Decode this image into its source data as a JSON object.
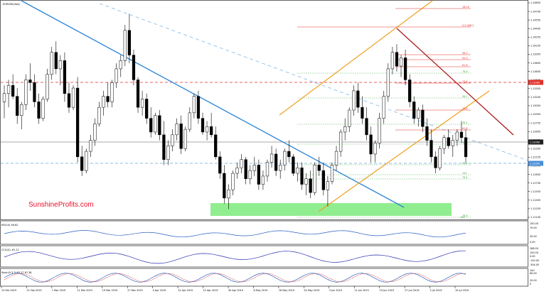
{
  "chart_data": {
    "type": "candlestick",
    "symbol_label": "EURUSD,Daily",
    "watermark": "SunshineProfits.com",
    "x_labels": [
      "13 Feb 2019",
      "21 Feb 2019",
      "1 Mar 2019",
      "11 Mar 2019",
      "19 Mar 2019",
      "27 Mar 2019",
      "4 Apr 2019",
      "12 Apr 2019",
      "22 Apr 2019",
      "30 Apr 2019",
      "8 May 2019",
      "16 May 2019",
      "24 May 2019",
      "3 Jun 2019",
      "11 Jun 2019",
      "19 Jun 2019",
      "27 Jun 2019",
      "5 Jul 2019",
      "15 Jul 2019"
    ],
    "price_axis": [
      "1.14850",
      "1.14700",
      "1.14550",
      "1.14405",
      "1.14255",
      "1.14105",
      "1.13955",
      "1.13805",
      "1.13655",
      "1.13505",
      "1.13355",
      "1.13205",
      "1.13055",
      "1.12905",
      "1.12755",
      "1.12605",
      "1.12455",
      "1.12305",
      "1.12155",
      "1.12000",
      "1.11850",
      "1.11700",
      "1.11555",
      "1.11405",
      "1.11255",
      "1.11100"
    ],
    "price_range": [
      1.11,
      1.149
    ],
    "current_price": "1.12060",
    "red_level_price": "1.13360",
    "blue_level_price": "1.11900",
    "fib_labels": [
      "161.8",
      "0.0 [ABC]",
      "38.2",
      "50.0",
      "61.8",
      "78.6",
      "23.6",
      "38.2",
      "23.6",
      "38.2",
      "61.8",
      "50.0",
      "61.8",
      "100",
      "76.4",
      "78.6",
      "100"
    ],
    "candles": [
      [
        1.131,
        1.134,
        1.128,
        1.1325
      ],
      [
        1.1325,
        1.135,
        1.13,
        1.134
      ],
      [
        1.134,
        1.136,
        1.1315,
        1.132
      ],
      [
        1.132,
        1.1335,
        1.127,
        1.1285
      ],
      [
        1.1285,
        1.131,
        1.126,
        1.1305
      ],
      [
        1.1305,
        1.136,
        1.1295,
        1.135
      ],
      [
        1.135,
        1.138,
        1.133,
        1.1345
      ],
      [
        1.1345,
        1.136,
        1.13,
        1.131
      ],
      [
        1.131,
        1.1325,
        1.127,
        1.128
      ],
      [
        1.128,
        1.132,
        1.1275,
        1.1315
      ],
      [
        1.1315,
        1.137,
        1.131,
        1.136
      ],
      [
        1.136,
        1.141,
        1.135,
        1.14
      ],
      [
        1.14,
        1.142,
        1.136,
        1.137
      ],
      [
        1.137,
        1.1395,
        1.134,
        1.1385
      ],
      [
        1.1385,
        1.14,
        1.131,
        1.1325
      ],
      [
        1.1325,
        1.1345,
        1.129,
        1.13
      ],
      [
        1.13,
        1.134,
        1.1295,
        1.1335
      ],
      [
        1.1335,
        1.1355,
        1.12,
        1.121
      ],
      [
        1.121,
        1.123,
        1.1175,
        1.1185
      ],
      [
        1.1185,
        1.1225,
        1.118,
        1.122
      ],
      [
        1.122,
        1.125,
        1.121,
        1.124
      ],
      [
        1.124,
        1.128,
        1.123,
        1.127
      ],
      [
        1.127,
        1.131,
        1.1265,
        1.13
      ],
      [
        1.13,
        1.133,
        1.1285,
        1.132
      ],
      [
        1.132,
        1.1345,
        1.13,
        1.131
      ],
      [
        1.131,
        1.135,
        1.13,
        1.1345
      ],
      [
        1.1345,
        1.138,
        1.1335,
        1.137
      ],
      [
        1.137,
        1.1395,
        1.1355,
        1.1385
      ],
      [
        1.1385,
        1.145,
        1.1375,
        1.144
      ],
      [
        1.144,
        1.147,
        1.138,
        1.1395
      ],
      [
        1.1395,
        1.1405,
        1.134,
        1.135
      ],
      [
        1.135,
        1.1355,
        1.129,
        1.13
      ],
      [
        1.13,
        1.133,
        1.1285,
        1.1315
      ],
      [
        1.1315,
        1.1325,
        1.127,
        1.128
      ],
      [
        1.128,
        1.13,
        1.1245,
        1.1255
      ],
      [
        1.1255,
        1.129,
        1.125,
        1.1285
      ],
      [
        1.1285,
        1.1295,
        1.124,
        1.125
      ],
      [
        1.125,
        1.1275,
        1.1195,
        1.1205
      ],
      [
        1.1205,
        1.124,
        1.1195,
        1.123
      ],
      [
        1.123,
        1.126,
        1.122,
        1.125
      ],
      [
        1.125,
        1.128,
        1.124,
        1.127
      ],
      [
        1.127,
        1.1285,
        1.1215,
        1.1225
      ],
      [
        1.1225,
        1.1265,
        1.122,
        1.126
      ],
      [
        1.126,
        1.13,
        1.1255,
        1.129
      ],
      [
        1.129,
        1.1325,
        1.128,
        1.132
      ],
      [
        1.132,
        1.133,
        1.127,
        1.128
      ],
      [
        1.128,
        1.129,
        1.125,
        1.1255
      ],
      [
        1.1255,
        1.1275,
        1.124,
        1.1265
      ],
      [
        1.1265,
        1.129,
        1.1245,
        1.125
      ],
      [
        1.125,
        1.1265,
        1.1205,
        1.121
      ],
      [
        1.121,
        1.122,
        1.117,
        1.118
      ],
      [
        1.118,
        1.1195,
        1.1125,
        1.1135
      ],
      [
        1.1135,
        1.116,
        1.1115,
        1.115
      ],
      [
        1.115,
        1.1185,
        1.114,
        1.118
      ],
      [
        1.118,
        1.12,
        1.117,
        1.119
      ],
      [
        1.119,
        1.1215,
        1.118,
        1.1205
      ],
      [
        1.1205,
        1.121,
        1.116,
        1.117
      ],
      [
        1.117,
        1.1195,
        1.116,
        1.1185
      ],
      [
        1.1185,
        1.121,
        1.1175,
        1.1195
      ],
      [
        1.1195,
        1.1205,
        1.115,
        1.116
      ],
      [
        1.116,
        1.1185,
        1.115,
        1.1175
      ],
      [
        1.1175,
        1.1205,
        1.1165,
        1.12
      ],
      [
        1.12,
        1.123,
        1.119,
        1.1215
      ],
      [
        1.1215,
        1.1225,
        1.1175,
        1.1185
      ],
      [
        1.1185,
        1.1205,
        1.117,
        1.1195
      ],
      [
        1.1195,
        1.1225,
        1.1185,
        1.122
      ],
      [
        1.122,
        1.124,
        1.12,
        1.121
      ],
      [
        1.121,
        1.1215,
        1.1175,
        1.118
      ],
      [
        1.118,
        1.12,
        1.1165,
        1.119
      ],
      [
        1.119,
        1.12,
        1.115,
        1.116
      ],
      [
        1.116,
        1.118,
        1.114,
        1.117
      ],
      [
        1.117,
        1.1185,
        1.1135,
        1.1145
      ],
      [
        1.1145,
        1.12,
        1.114,
        1.1195
      ],
      [
        1.1195,
        1.121,
        1.1175,
        1.1185
      ],
      [
        1.1185,
        1.12,
        1.114,
        1.115
      ],
      [
        1.115,
        1.1175,
        1.112,
        1.1165
      ],
      [
        1.1165,
        1.12,
        1.116,
        1.1195
      ],
      [
        1.1195,
        1.123,
        1.1185,
        1.122
      ],
      [
        1.122,
        1.126,
        1.121,
        1.1255
      ],
      [
        1.1255,
        1.128,
        1.124,
        1.1265
      ],
      [
        1.1265,
        1.13,
        1.1255,
        1.1295
      ],
      [
        1.1295,
        1.134,
        1.1285,
        1.133
      ],
      [
        1.133,
        1.1345,
        1.129,
        1.13
      ],
      [
        1.13,
        1.132,
        1.127,
        1.128
      ],
      [
        1.128,
        1.13,
        1.124,
        1.125
      ],
      [
        1.125,
        1.1265,
        1.12,
        1.1215
      ],
      [
        1.1215,
        1.124,
        1.12,
        1.1235
      ],
      [
        1.1235,
        1.129,
        1.1225,
        1.128
      ],
      [
        1.128,
        1.133,
        1.127,
        1.132
      ],
      [
        1.132,
        1.138,
        1.131,
        1.137
      ],
      [
        1.137,
        1.141,
        1.136,
        1.14
      ],
      [
        1.14,
        1.1415,
        1.1365,
        1.1375
      ],
      [
        1.1375,
        1.1395,
        1.1355,
        1.139
      ],
      [
        1.139,
        1.1405,
        1.134,
        1.135
      ],
      [
        1.135,
        1.136,
        1.13,
        1.131
      ],
      [
        1.131,
        1.132,
        1.127,
        1.128
      ],
      [
        1.128,
        1.13,
        1.1265,
        1.1295
      ],
      [
        1.1295,
        1.1305,
        1.1255,
        1.1265
      ],
      [
        1.1265,
        1.128,
        1.123,
        1.124
      ],
      [
        1.124,
        1.126,
        1.12,
        1.121
      ],
      [
        1.121,
        1.122,
        1.118,
        1.119
      ],
      [
        1.119,
        1.123,
        1.1185,
        1.1225
      ],
      [
        1.1225,
        1.125,
        1.1215,
        1.1245
      ],
      [
        1.1245,
        1.126,
        1.1225,
        1.123
      ],
      [
        1.123,
        1.125,
        1.121,
        1.124
      ],
      [
        1.124,
        1.126,
        1.123,
        1.1255
      ],
      [
        1.1255,
        1.1275,
        1.1235,
        1.1245
      ],
      [
        1.1245,
        1.126,
        1.12,
        1.121
      ]
    ]
  }
}
